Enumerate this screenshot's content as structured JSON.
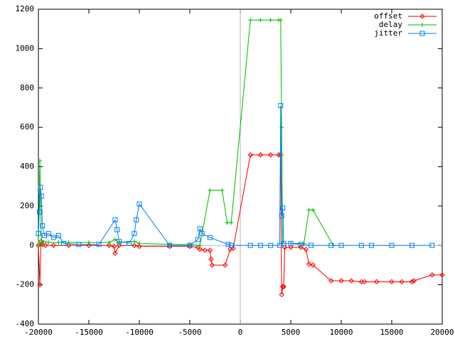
{
  "chart_data": {
    "type": "line",
    "xlim": [
      -20000,
      20000
    ],
    "xticks": [
      -20000,
      -15000,
      -10000,
      -5000,
      0,
      5000,
      10000,
      15000,
      20000
    ],
    "ylim": [
      -400,
      1200
    ],
    "yticks": [
      -400,
      -200,
      0,
      200,
      400,
      600,
      800,
      1000,
      1200
    ],
    "zero_axes": true,
    "legend": "top-right",
    "series": [
      {
        "name": "offset",
        "color": "#ff0000",
        "marker": "diamond",
        "x": [
          -20000,
          -19850,
          -19750,
          -19600,
          -19300,
          -18500,
          -17000,
          -15000,
          -13000,
          -12500,
          -12400,
          -12000,
          -10500,
          -10000,
          -7000,
          -5000,
          -4200,
          -4000,
          -3500,
          -3000,
          -2900,
          -2800,
          -1500,
          -1000,
          -700,
          1000,
          2000,
          3000,
          3800,
          4000,
          4100,
          4200,
          4300,
          4400,
          5000,
          6000,
          6500,
          6800,
          7200,
          9000,
          10000,
          11000,
          12000,
          12300,
          13500,
          15000,
          16000,
          17000,
          17200,
          19000,
          20000
        ],
        "values": [
          0,
          -200,
          20,
          5,
          0,
          0,
          0,
          0,
          0,
          -5,
          -40,
          0,
          0,
          -5,
          -5,
          -5,
          -10,
          -20,
          -25,
          -25,
          -70,
          -100,
          -100,
          -20,
          -15,
          460,
          460,
          460,
          460,
          460,
          -250,
          -210,
          -210,
          -10,
          -10,
          -10,
          -20,
          -95,
          -100,
          -180,
          -180,
          -180,
          -185,
          -185,
          -185,
          -185,
          -185,
          -185,
          -180,
          -150,
          -150
        ]
      },
      {
        "name": "delay",
        "color": "#00c000",
        "marker": "plus",
        "x": [
          -20000,
          -19850,
          -19700,
          -19500,
          -19000,
          -18000,
          -17000,
          -15000,
          -13000,
          -12400,
          -12000,
          -10500,
          -10000,
          -7000,
          -5000,
          -4000,
          -3000,
          -1800,
          -1300,
          -900,
          1000,
          2000,
          3000,
          3800,
          4000,
          4100,
          4200,
          5000,
          6300,
          6800,
          7200,
          9200
        ],
        "values": [
          0,
          430,
          10,
          20,
          15,
          15,
          15,
          15,
          15,
          30,
          15,
          20,
          10,
          5,
          5,
          0,
          280,
          280,
          115,
          115,
          1145,
          1145,
          1145,
          1145,
          1145,
          600,
          10,
          10,
          10,
          180,
          180,
          0
        ]
      },
      {
        "name": "jitter",
        "color": "#0080ff",
        "marker": "square",
        "x": [
          -20000,
          -19900,
          -19800,
          -19700,
          -19600,
          -19400,
          -19000,
          -18500,
          -18000,
          -17500,
          -16000,
          -14000,
          -12400,
          -12200,
          -12000,
          -11000,
          -10500,
          -10300,
          -10000,
          -7000,
          -5000,
          -4200,
          -4000,
          -3800,
          -3000,
          -1200,
          -900,
          1000,
          2000,
          3000,
          3900,
          4000,
          4100,
          4200,
          4300,
          5000,
          6000,
          7000,
          9000,
          10000,
          12000,
          13000,
          15000,
          17000,
          19000
        ],
        "values": [
          60,
          170,
          295,
          250,
          100,
          50,
          60,
          40,
          50,
          10,
          5,
          5,
          130,
          80,
          20,
          10,
          60,
          130,
          210,
          0,
          0,
          30,
          85,
          60,
          40,
          5,
          0,
          0,
          0,
          0,
          0,
          710,
          150,
          190,
          10,
          10,
          5,
          0,
          0,
          0,
          0,
          0,
          0,
          0,
          0
        ]
      }
    ]
  }
}
